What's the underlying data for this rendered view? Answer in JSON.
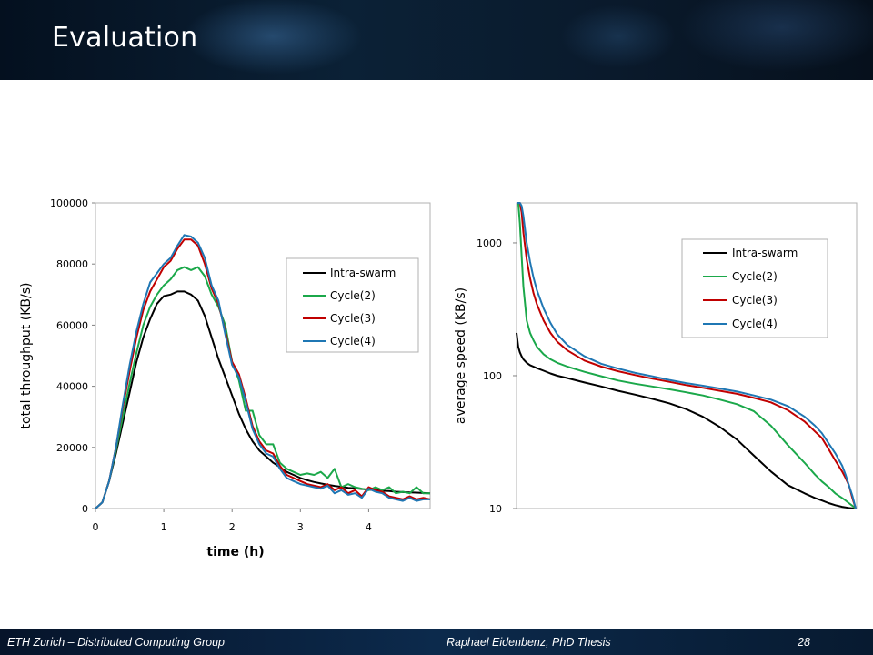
{
  "slide": {
    "title": "Evaluation",
    "footer_left": "ETH Zurich – Distributed Computing Group",
    "footer_center": "Raphael Eidenbenz, PhD Thesis",
    "page_number": "28"
  },
  "colors": {
    "Intra-swarm": "#000000",
    "Cycle(2)": "#1ba84a",
    "Cycle(3)": "#c00000",
    "Cycle(4)": "#1f77b4"
  },
  "chart_data": [
    {
      "type": "line",
      "xlabel": "time (h)",
      "ylabel": "total throughput (KB/s)",
      "xlim": [
        0,
        4.9
      ],
      "ylim": [
        0,
        100000
      ],
      "x_ticks": [
        0,
        1,
        2,
        3,
        4
      ],
      "y_ticks": [
        0,
        20000,
        40000,
        60000,
        80000,
        100000
      ],
      "legend_position": "right",
      "x": [
        0,
        0.1,
        0.2,
        0.3,
        0.4,
        0.5,
        0.6,
        0.7,
        0.8,
        0.9,
        1.0,
        1.1,
        1.2,
        1.3,
        1.4,
        1.5,
        1.6,
        1.7,
        1.8,
        1.9,
        2.0,
        2.1,
        2.2,
        2.3,
        2.4,
        2.5,
        2.6,
        2.7,
        2.8,
        2.9,
        3.0,
        3.1,
        3.2,
        3.3,
        3.4,
        3.5,
        3.6,
        3.7,
        3.8,
        3.9,
        4.0,
        4.1,
        4.2,
        4.3,
        4.4,
        4.5,
        4.6,
        4.7,
        4.8,
        4.9
      ],
      "series": [
        {
          "name": "Intra-swarm",
          "values": [
            0,
            2000,
            9000,
            18000,
            28000,
            38000,
            48000,
            56000,
            62000,
            67000,
            69500,
            70000,
            71000,
            71000,
            70000,
            68000,
            63000,
            56000,
            49000,
            43000,
            37000,
            31000,
            26000,
            22000,
            19000,
            17000,
            15000,
            13500,
            12000,
            11000,
            10000,
            9300,
            8700,
            8200,
            7800,
            7400,
            7100,
            6800,
            6600,
            6400,
            6200,
            6000,
            5800,
            5700,
            5500,
            5400,
            5300,
            5200,
            5100,
            5000
          ]
        },
        {
          "name": "Cycle(2)",
          "values": [
            0,
            2000,
            9000,
            19000,
            30000,
            41000,
            51000,
            60000,
            66000,
            70000,
            73000,
            75000,
            78000,
            79000,
            78000,
            79000,
            76000,
            70000,
            66000,
            60000,
            48000,
            42000,
            32000,
            32000,
            24000,
            21000,
            21000,
            15000,
            13000,
            12000,
            11000,
            11500,
            11000,
            12000,
            10000,
            13000,
            7000,
            8000,
            7000,
            6500,
            6000,
            7000,
            6000,
            7000,
            5000,
            5500,
            5000,
            7000,
            5000,
            5000
          ]
        },
        {
          "name": "Cycle(3)",
          "values": [
            0,
            2000,
            9000,
            20000,
            33000,
            45000,
            56000,
            65000,
            71000,
            75000,
            79000,
            81000,
            85000,
            88000,
            88000,
            86000,
            80000,
            72000,
            67000,
            58000,
            48000,
            44000,
            36000,
            27000,
            22000,
            19000,
            18000,
            14000,
            11000,
            10000,
            9000,
            8000,
            7500,
            7000,
            8000,
            6000,
            7000,
            5000,
            6000,
            4000,
            7000,
            6000,
            5500,
            4000,
            3500,
            3000,
            4000,
            3000,
            3500,
            3000
          ]
        },
        {
          "name": "Cycle(4)",
          "values": [
            0,
            2000,
            9000,
            20000,
            34000,
            47000,
            58000,
            67000,
            74000,
            77000,
            80000,
            82000,
            86000,
            89500,
            89000,
            87000,
            82000,
            73000,
            68000,
            57000,
            47000,
            43000,
            35000,
            26000,
            21000,
            18000,
            17000,
            13000,
            10000,
            9000,
            8000,
            7500,
            7000,
            6500,
            7500,
            5000,
            6000,
            4500,
            5000,
            3500,
            6500,
            5500,
            5000,
            3500,
            3000,
            2500,
            3500,
            2500,
            3000,
            3000
          ]
        }
      ]
    },
    {
      "type": "line",
      "xlabel": "",
      "ylabel": "average speed (KB/s)",
      "y_scale": "log",
      "ylim": [
        10,
        2000
      ],
      "y_ticks": [
        10,
        100,
        1000
      ],
      "x_ticks": [],
      "xlim": [
        0,
        1
      ],
      "legend_position": "top-right",
      "x": [
        0,
        0.005,
        0.01,
        0.015,
        0.02,
        0.03,
        0.04,
        0.05,
        0.06,
        0.08,
        0.1,
        0.12,
        0.15,
        0.2,
        0.25,
        0.3,
        0.35,
        0.4,
        0.45,
        0.5,
        0.55,
        0.6,
        0.65,
        0.7,
        0.75,
        0.8,
        0.85,
        0.88,
        0.9,
        0.92,
        0.94,
        0.96,
        0.97,
        0.98,
        0.99,
        1.0
      ],
      "series": [
        {
          "name": "Intra-swarm",
          "values": [
            210,
            165,
            150,
            140,
            133,
            125,
            120,
            117,
            114,
            109,
            104,
            100,
            96,
            89,
            83,
            77,
            72,
            67,
            62,
            56,
            49,
            41,
            33,
            25,
            19,
            15,
            13,
            12,
            11.5,
            11,
            10.6,
            10.3,
            10.2,
            10.1,
            10.05,
            10
          ]
        },
        {
          "name": "Cycle(2)",
          "values": [
            2000,
            2000,
            1400,
            800,
            470,
            260,
            210,
            185,
            165,
            145,
            133,
            125,
            117,
            107,
            99,
            92,
            87,
            83,
            79,
            75,
            71,
            66,
            61,
            54,
            42,
            30,
            22,
            18,
            16,
            14.5,
            13,
            12,
            11.5,
            11,
            10.5,
            10
          ]
        },
        {
          "name": "Cycle(3)",
          "values": [
            2000,
            2000,
            2000,
            1700,
            1200,
            750,
            540,
            420,
            345,
            260,
            210,
            180,
            155,
            130,
            117,
            108,
            101,
            95,
            90,
            85,
            81,
            77,
            73,
            68,
            63,
            55,
            45,
            38,
            34,
            28,
            23,
            19,
            17,
            15,
            12,
            10
          ]
        },
        {
          "name": "Cycle(4)",
          "values": [
            2000,
            2000,
            2000,
            1900,
            1600,
            1000,
            720,
            550,
            440,
            320,
            250,
            205,
            170,
            140,
            123,
            113,
            105,
            99,
            93,
            88,
            84,
            80,
            76,
            71,
            66,
            59,
            49,
            42,
            37,
            31,
            26,
            21,
            18,
            15,
            12.5,
            10
          ]
        }
      ]
    }
  ]
}
